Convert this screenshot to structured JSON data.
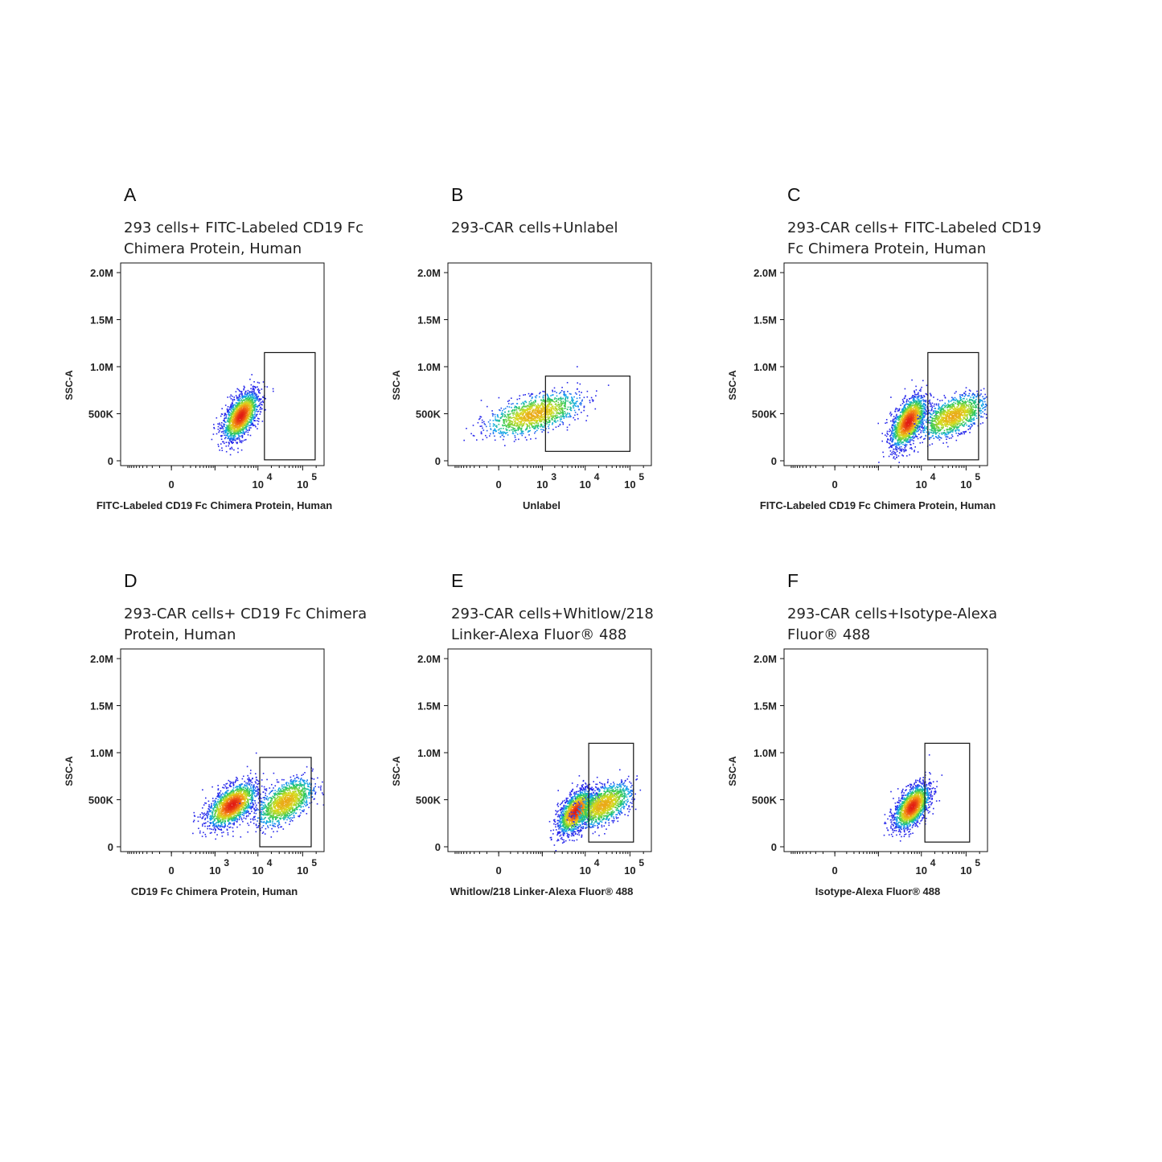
{
  "chart_data": [
    {
      "type": "scatter",
      "panel": "A",
      "title_lines": [
        "293 cells+ FITC-Labeled CD19 Fc",
        "Chimera Protein, Human"
      ],
      "xlabel": "FITC-Labeled CD19 Fc Chimera Protein, Human",
      "ylabel": "SSC-A",
      "x_scale": "biexponential",
      "x_ticks": [
        {
          "base": "0",
          "exp": ""
        },
        {
          "base": "10",
          "exp": "4"
        },
        {
          "base": "10",
          "exp": "5"
        }
      ],
      "y_ticks": [
        "0",
        "500K",
        "1.0M",
        "1.5M",
        "2.0M"
      ],
      "y_tick_values": [
        0,
        500000,
        1000000,
        1500000,
        2000000
      ],
      "ylim": [
        0,
        2000000
      ],
      "gate": {
        "x_range": [
          14000,
          190000
        ],
        "y_range": [
          10000,
          1150000
        ]
      },
      "populations": [
        {
          "x_center": 4000,
          "y_center": 480000,
          "x_spread": 0.2,
          "y_spread": 130000,
          "density": "high"
        }
      ]
    },
    {
      "type": "scatter",
      "panel": "B",
      "title_lines": [
        "293-CAR cells+Unlabel"
      ],
      "xlabel": "Unlabel",
      "ylabel": "SSC-A",
      "x_scale": "biexponential",
      "x_ticks": [
        {
          "base": "0",
          "exp": ""
        },
        {
          "base": "10",
          "exp": "3"
        },
        {
          "base": "10",
          "exp": "4"
        },
        {
          "base": "10",
          "exp": "5"
        }
      ],
      "y_ticks": [
        "0",
        "500K",
        "1.0M",
        "1.5M",
        "2.0M"
      ],
      "y_tick_values": [
        0,
        500000,
        1000000,
        1500000,
        2000000
      ],
      "ylim": [
        0,
        2000000
      ],
      "gate": {
        "x_range": [
          1200,
          100000
        ],
        "y_range": [
          100000,
          900000
        ]
      },
      "populations": [
        {
          "x_center": 600,
          "y_center": 500000,
          "x_spread": 0.5,
          "y_spread": 110000,
          "density": "medium"
        }
      ]
    },
    {
      "type": "scatter",
      "panel": "C",
      "title_lines": [
        "293-CAR cells+ FITC-Labeled CD19",
        "Fc Chimera Protein, Human"
      ],
      "xlabel": "FITC-Labeled CD19 Fc Chimera Protein, Human",
      "ylabel": "SSC-A",
      "x_scale": "biexponential",
      "x_ticks": [
        {
          "base": "0",
          "exp": ""
        },
        {
          "base": "10",
          "exp": "4"
        },
        {
          "base": "10",
          "exp": "5"
        }
      ],
      "y_ticks": [
        "0",
        "500K",
        "1.0M",
        "1.5M",
        "2.0M"
      ],
      "y_tick_values": [
        0,
        500000,
        1000000,
        1500000,
        2000000
      ],
      "ylim": [
        0,
        2000000
      ],
      "gate": {
        "x_range": [
          14000,
          190000
        ],
        "y_range": [
          10000,
          1150000
        ]
      },
      "populations": [
        {
          "x_center": 5000,
          "y_center": 420000,
          "x_spread": 0.2,
          "y_spread": 140000,
          "density": "high"
        },
        {
          "x_center": 50000,
          "y_center": 480000,
          "x_spread": 0.35,
          "y_spread": 110000,
          "density": "medium"
        }
      ]
    },
    {
      "type": "scatter",
      "panel": "D",
      "title_lines": [
        "293-CAR cells+ CD19 Fc Chimera",
        "Protein, Human"
      ],
      "xlabel": "CD19 Fc Chimera Protein, Human",
      "ylabel": "SSC-A",
      "x_scale": "biexponential",
      "x_ticks": [
        {
          "base": "0",
          "exp": ""
        },
        {
          "base": "10",
          "exp": "3"
        },
        {
          "base": "10",
          "exp": "4"
        },
        {
          "base": "10",
          "exp": "5"
        }
      ],
      "y_ticks": [
        "0",
        "500K",
        "1.0M",
        "1.5M",
        "2.0M"
      ],
      "y_tick_values": [
        0,
        500000,
        1000000,
        1500000,
        2000000
      ],
      "ylim": [
        0,
        2000000
      ],
      "gate": {
        "x_range": [
          11000,
          155000
        ],
        "y_range": [
          0,
          950000
        ]
      },
      "populations": [
        {
          "x_center": 2500,
          "y_center": 450000,
          "x_spread": 0.28,
          "y_spread": 120000,
          "density": "high"
        },
        {
          "x_center": 40000,
          "y_center": 480000,
          "x_spread": 0.3,
          "y_spread": 120000,
          "density": "medium"
        }
      ]
    },
    {
      "type": "scatter",
      "panel": "E",
      "title_lines": [
        "293-CAR  cells+Whitlow/218",
        "Linker-Alexa Fluor® 488"
      ],
      "xlabel": "Whitlow/218 Linker-Alexa Fluor® 488",
      "ylabel": "SSC-A",
      "x_scale": "biexponential",
      "x_ticks": [
        {
          "base": "0",
          "exp": ""
        },
        {
          "base": "10",
          "exp": "4"
        },
        {
          "base": "10",
          "exp": "5"
        }
      ],
      "y_ticks": [
        "0",
        "500K",
        "1.0M",
        "1.5M",
        "2.0M"
      ],
      "y_tick_values": [
        0,
        500000,
        1000000,
        1500000,
        2000000
      ],
      "ylim": [
        0,
        2000000
      ],
      "gate": {
        "x_range": [
          12000,
          120000
        ],
        "y_range": [
          50000,
          1100000
        ]
      },
      "populations": [
        {
          "x_center": 6000,
          "y_center": 380000,
          "x_spread": 0.2,
          "y_spread": 120000,
          "density": "high"
        },
        {
          "x_center": 25000,
          "y_center": 450000,
          "x_spread": 0.3,
          "y_spread": 110000,
          "density": "medium"
        }
      ]
    },
    {
      "type": "scatter",
      "panel": "F",
      "title_lines": [
        "293-CAR  cells+Isotype-Alexa",
        "Fluor® 488"
      ],
      "xlabel": "Isotype-Alexa Fluor® 488",
      "ylabel": "SSC-A",
      "x_scale": "biexponential",
      "x_ticks": [
        {
          "base": "0",
          "exp": ""
        },
        {
          "base": "10",
          "exp": "4"
        },
        {
          "base": "10",
          "exp": "5"
        }
      ],
      "y_ticks": [
        "0",
        "500K",
        "1.0M",
        "1.5M",
        "2.0M"
      ],
      "y_tick_values": [
        0,
        500000,
        1000000,
        1500000,
        2000000
      ],
      "ylim": [
        0,
        2000000
      ],
      "gate": {
        "x_range": [
          12000,
          120000
        ],
        "y_range": [
          50000,
          1100000
        ]
      },
      "populations": [
        {
          "x_center": 6000,
          "y_center": 430000,
          "x_spread": 0.2,
          "y_spread": 120000,
          "density": "high"
        }
      ]
    }
  ]
}
